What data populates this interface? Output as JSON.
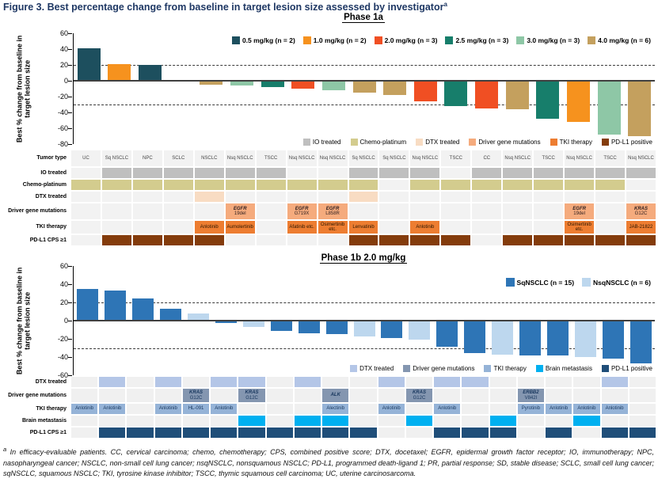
{
  "figure": {
    "title": "Figure 3. Best percentage change from baseline in target lesion size assessed by investigator",
    "title_sup": "a",
    "footnote_sup": "a",
    "footnote": " In efficacy-evaluable patients. CC, cervical carcinoma; chemo, chemotherapy; CPS, combined positive score; DTX, docetaxel; EGFR, epidermal growth factor receptor; IO, immunotherapy; NPC, nasopharyngeal cancer; NSCLC, non-small cell lung cancer; nsqNSCLC, nonsquamous NSCLC; PD-L1, programmed death-ligand 1; PR, partial response; SD, stable disease; SCLC, small cell lung cancer; sqNSCLC, squamous NSCLC; TKI, tyrosine kinase inhibitor; TSCC, thymic squamous cell carcinoma; UC, uterine carcinosarcoma."
  },
  "chart_data": [
    {
      "type": "bar",
      "title": "Phase 1a",
      "ylabel": "Best % change from baseline in target lesion size",
      "ylim": [
        -80,
        60
      ],
      "yticks": [
        60,
        40,
        20,
        0,
        -20,
        -40,
        -60,
        -80
      ],
      "reference_lines": [
        20,
        -30
      ],
      "legend_position": "top-right",
      "grid": false,
      "legend": [
        {
          "label": "0.5 mg/kg (n = 2)",
          "color": "#1d4f5e"
        },
        {
          "label": "1.0 mg/kg (n = 2)",
          "color": "#f6921e"
        },
        {
          "label": "2.0 mg/kg (n = 3)",
          "color": "#f04f23"
        },
        {
          "label": "2.5 mg/kg (n = 3)",
          "color": "#177e6b"
        },
        {
          "label": "3.0 mg/kg (n = 3)",
          "color": "#8ec7a6"
        },
        {
          "label": "4.0 mg/kg (n = 6)",
          "color": "#c4a05e"
        }
      ],
      "categories": [
        "UC",
        "Sq NSCLC",
        "NPC",
        "SCLC",
        "NSCLC",
        "Nsq NSCLC",
        "TSCC",
        "Nsq NSCLC",
        "Nsq NSCLC",
        "Sq NSCLC",
        "Sq NSCLC",
        "Nsq NSCLC",
        "TSCC",
        "CC",
        "Nsq NSCLC",
        "TSCC",
        "Nsq NSCLC",
        "TSCC",
        "Nsq NSCLC"
      ],
      "values": [
        41,
        21,
        20,
        0,
        -5,
        -6,
        -8,
        -10,
        -12,
        -15,
        -18,
        -26,
        -32,
        -35,
        -36,
        -48,
        -52,
        -68,
        -70
      ],
      "series_index": [
        0,
        1,
        0,
        5,
        5,
        4,
        3,
        2,
        4,
        5,
        5,
        2,
        3,
        2,
        5,
        3,
        1,
        4,
        5
      ]
    },
    {
      "type": "bar",
      "title": "Phase 1b 2.0 mg/kg",
      "ylabel": "Best % change from baseline in target lesion size",
      "ylim": [
        -60,
        60
      ],
      "yticks": [
        60,
        40,
        20,
        0,
        -20,
        -40,
        -60
      ],
      "reference_lines": [
        20,
        -30
      ],
      "legend_position": "top-right",
      "grid": false,
      "legend": [
        {
          "label": "SqNSCLC (n = 15)",
          "color": "#2e75b6"
        },
        {
          "label": "NsqNSCLC (n = 6)",
          "color": "#bdd7ee"
        }
      ],
      "values": [
        35,
        33,
        24,
        13,
        8,
        -3,
        -7,
        -11,
        -14,
        -15,
        -17,
        -19,
        -21,
        -29,
        -36,
        -37,
        -38,
        -38,
        -40,
        -42,
        -47
      ],
      "series_index": [
        0,
        0,
        0,
        0,
        1,
        0,
        1,
        0,
        0,
        0,
        1,
        0,
        1,
        0,
        0,
        1,
        0,
        0,
        1,
        0,
        0
      ]
    }
  ],
  "grids": {
    "phase1a": {
      "row_labels": [
        "Tumor type",
        "IO treated",
        "Chemo-platinum",
        "DTX treated",
        "Driver gene mutations",
        "TKI therapy",
        "PD-L1 CPS ≥1"
      ],
      "rows": {
        "io": [
          0,
          1,
          1,
          1,
          1,
          1,
          1,
          0,
          0,
          1,
          1,
          1,
          0,
          1,
          1,
          1,
          1,
          1,
          1
        ],
        "chemo": [
          1,
          1,
          1,
          1,
          1,
          1,
          1,
          1,
          1,
          1,
          0,
          1,
          1,
          1,
          1,
          1,
          1,
          1,
          0
        ],
        "dtx": [
          0,
          0,
          0,
          0,
          1,
          0,
          0,
          0,
          0,
          1,
          0,
          0,
          0,
          0,
          0,
          0,
          0,
          0,
          0
        ],
        "driver": [
          "",
          "",
          "",
          "",
          "",
          "EGFR|19del",
          "",
          "EGFR|G719X",
          "EGFR|L858R",
          "",
          "",
          "",
          "",
          "",
          "",
          "",
          "EGFR|19del",
          "",
          "KRAS|G12C"
        ],
        "tki": [
          "",
          "",
          "",
          "",
          "Anlotinib",
          "Aumolertinib",
          "",
          "Afatinib etc.",
          "Osimertinib etc.",
          "Lenvatinib",
          "",
          "Anlotinib",
          "",
          "",
          "",
          "",
          "Osimertinib etc.",
          "",
          "JAB-21822"
        ],
        "pdl1": [
          0,
          1,
          1,
          1,
          1,
          0,
          0,
          0,
          0,
          1,
          1,
          1,
          1,
          0,
          1,
          1,
          1,
          1,
          1
        ]
      },
      "colors": {
        "io": "#bfbfbf",
        "chemo": "#d3cc8e",
        "dtx": "#f8dcc3",
        "driver": "#f5ab7d",
        "tki": "#ed7d31",
        "pdl1": "#843c0c",
        "empty": "#f2f2f2",
        "tumor_bg": "#f2f2f2",
        "driver_text": "#332222",
        "tki_text": "#2b1600",
        "tumor_text": "#444444"
      },
      "legend": [
        {
          "label": "IO treated",
          "color": "#bfbfbf"
        },
        {
          "label": "Chemo-platinum",
          "color": "#d3cc8e"
        },
        {
          "label": "DTX treated",
          "color": "#f8dcc3"
        },
        {
          "label": "Driver gene mutations",
          "color": "#f5ab7d"
        },
        {
          "label": "TKI therapy",
          "color": "#ed7d31"
        },
        {
          "label": "PD-L1 positive",
          "color": "#843c0c"
        }
      ]
    },
    "phase1b": {
      "row_labels": [
        "DTX treated",
        "Driver gene mutations",
        "TKI therapy",
        "Brain metastasis",
        "PD-L1 CPS ≥1"
      ],
      "rows": {
        "dtx": [
          0,
          1,
          0,
          1,
          0,
          1,
          1,
          0,
          1,
          0,
          0,
          1,
          0,
          1,
          1,
          0,
          0,
          0,
          0,
          1,
          0
        ],
        "driver": [
          "",
          "",
          "",
          "",
          "KRAS|G12C",
          "",
          "KRAS|G12C",
          "",
          "",
          "ALK",
          "",
          "",
          "KRAS|G12C",
          "",
          "",
          "",
          "ERBB2|V842I",
          "",
          "",
          "",
          ""
        ],
        "tki": [
          "Anlotinib",
          "Anlotinib",
          "",
          "Anlotinib",
          "HL-091",
          "Anlotinib",
          "",
          "",
          "",
          "Alectinib",
          "",
          "Anlotinib",
          "",
          "Anlotinib",
          "",
          "",
          "Pyrotinib",
          "Anlotinib",
          "Anlotinib",
          "Anlotinib",
          ""
        ],
        "brain": [
          0,
          0,
          0,
          0,
          0,
          0,
          1,
          0,
          1,
          1,
          0,
          0,
          1,
          0,
          0,
          1,
          0,
          0,
          1,
          0,
          0
        ],
        "pdl1": [
          0,
          1,
          1,
          1,
          1,
          1,
          1,
          1,
          1,
          1,
          1,
          0,
          0,
          1,
          1,
          1,
          0,
          1,
          0,
          1,
          1
        ]
      },
      "colors": {
        "dtx": "#b4c6e7",
        "driver": "#8496b0",
        "tki": "#95b3d7",
        "brain": "#00b0f0",
        "pdl1": "#1f4e79",
        "empty": "#f0f0f0",
        "driver_text": "#17365d",
        "tki_text": "#17365d"
      },
      "legend": [
        {
          "label": "DTX treated",
          "color": "#b4c6e7"
        },
        {
          "label": "Driver gene mutations",
          "color": "#8496b0"
        },
        {
          "label": "TKI therapy",
          "color": "#95b3d7"
        },
        {
          "label": "Brain metastasis",
          "color": "#00b0f0"
        },
        {
          "label": "PD-L1 positive",
          "color": "#1f4e79"
        }
      ]
    }
  }
}
